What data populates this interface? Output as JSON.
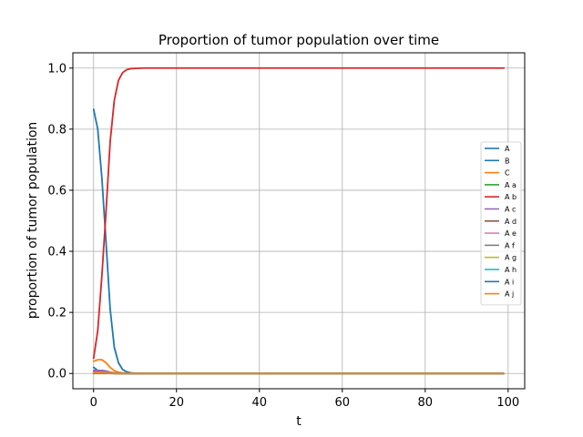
{
  "chart_data": {
    "type": "line",
    "title": "Proportion of tumor population over time",
    "xlabel": "t",
    "ylabel": "proportion of tumor population",
    "xlim": [
      -5,
      104
    ],
    "ylim": [
      -0.05,
      1.05
    ],
    "xticks": [
      0,
      20,
      40,
      60,
      80,
      100
    ],
    "yticks": [
      0.0,
      0.2,
      0.4,
      0.6,
      0.8,
      1.0
    ],
    "xtick_labels": [
      "0",
      "20",
      "40",
      "60",
      "80",
      "100"
    ],
    "ytick_labels": [
      "0.0",
      "0.2",
      "0.4",
      "0.6",
      "0.8",
      "1.0"
    ],
    "grid": true,
    "legend_position": "center-right",
    "series": [
      {
        "name": "A",
        "color": "#1f77b4",
        "x": [
          0,
          1,
          2,
          3,
          4,
          5,
          6,
          8,
          10,
          99
        ],
        "y": [
          0.02,
          0.01,
          0.005,
          0.002,
          0.001,
          0,
          0,
          0,
          0,
          0
        ]
      },
      {
        "name": "B",
        "color": "#1f77b4",
        "x": [
          0,
          1,
          2,
          3,
          4,
          5,
          6,
          7,
          8,
          9,
          10,
          12,
          99
        ],
        "y": [
          0.865,
          0.8,
          0.64,
          0.43,
          0.21,
          0.085,
          0.035,
          0.013,
          0.005,
          0.002,
          0.001,
          0,
          0
        ]
      },
      {
        "name": "C",
        "color": "#ff7f0e",
        "x": [
          0,
          1,
          2,
          3,
          4,
          5,
          6,
          7,
          8,
          10,
          99
        ],
        "y": [
          0.04,
          0.045,
          0.045,
          0.035,
          0.02,
          0.009,
          0.004,
          0.002,
          0.001,
          0,
          0
        ]
      },
      {
        "name": "A a",
        "color": "#2ca02c",
        "x": [
          0,
          99
        ],
        "y": [
          0,
          0
        ]
      },
      {
        "name": "A b",
        "color": "#d62728",
        "x": [
          0,
          1,
          2,
          3,
          4,
          5,
          6,
          7,
          8,
          9,
          10,
          12,
          15,
          99
        ],
        "y": [
          0.05,
          0.14,
          0.32,
          0.53,
          0.76,
          0.895,
          0.96,
          0.985,
          0.995,
          0.998,
          0.999,
          1.0,
          1.0,
          1.0
        ]
      },
      {
        "name": "A c",
        "color": "#9467bd",
        "x": [
          0,
          1,
          2,
          3,
          4,
          5,
          6,
          8,
          99
        ],
        "y": [
          0.01,
          0.01,
          0.01,
          0.008,
          0.004,
          0.002,
          0.001,
          0,
          0
        ]
      },
      {
        "name": "A d",
        "color": "#8c564b",
        "x": [
          0,
          1,
          2,
          3,
          4,
          5,
          6,
          99
        ],
        "y": [
          0.005,
          0.005,
          0.004,
          0.003,
          0.002,
          0.001,
          0,
          0
        ]
      },
      {
        "name": "A e",
        "color": "#e377c2",
        "x": [
          0,
          1,
          2,
          3,
          4,
          5,
          6,
          99
        ],
        "y": [
          0.004,
          0.004,
          0.004,
          0.003,
          0.002,
          0.001,
          0,
          0
        ]
      },
      {
        "name": "A f",
        "color": "#7f7f7f",
        "x": [
          0,
          1,
          2,
          3,
          4,
          5,
          99
        ],
        "y": [
          0.003,
          0.003,
          0.003,
          0.002,
          0.001,
          0,
          0
        ]
      },
      {
        "name": "A g",
        "color": "#bcbd22",
        "x": [
          0,
          1,
          2,
          3,
          4,
          5,
          99
        ],
        "y": [
          0.003,
          0.003,
          0.003,
          0.002,
          0.001,
          0,
          0
        ]
      },
      {
        "name": "A h",
        "color": "#17becf",
        "x": [
          0,
          1,
          2,
          3,
          4,
          5,
          99
        ],
        "y": [
          0.002,
          0.002,
          0.002,
          0.002,
          0.001,
          0,
          0
        ]
      },
      {
        "name": "A i",
        "color": "#1f77b4",
        "x": [
          0,
          1,
          2,
          3,
          4,
          5,
          99
        ],
        "y": [
          0.002,
          0.002,
          0.002,
          0.001,
          0.001,
          0,
          0
        ]
      },
      {
        "name": "A j",
        "color": "#ff7f0e",
        "x": [
          0,
          1,
          2,
          3,
          4,
          5,
          99
        ],
        "y": [
          0.002,
          0.002,
          0.002,
          0.001,
          0.001,
          0,
          0
        ]
      }
    ]
  }
}
